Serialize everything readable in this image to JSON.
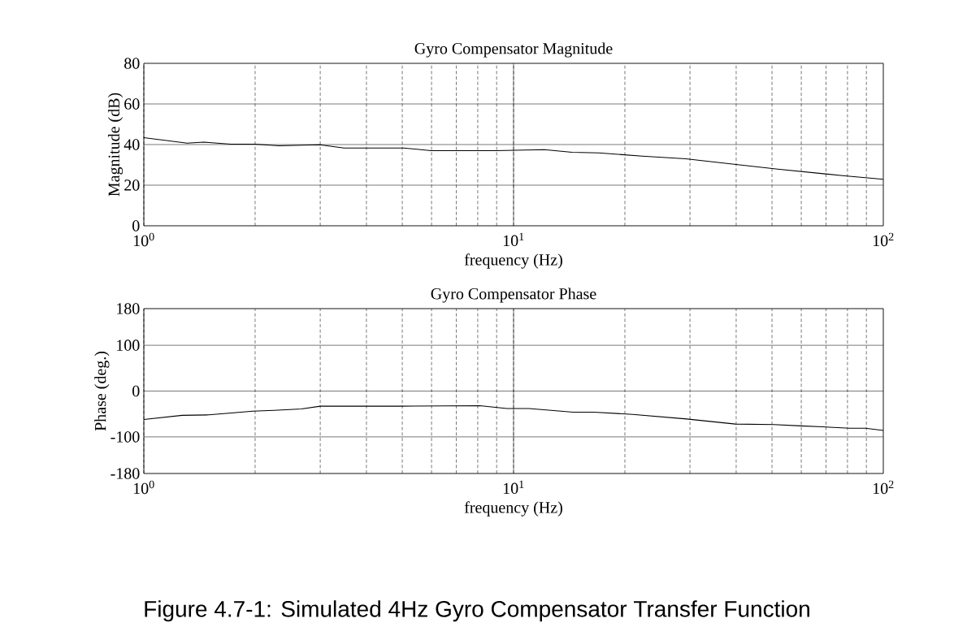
{
  "chart_data": [
    {
      "type": "line",
      "title": "Gyro Compensator Magnitude",
      "xlabel": "frequency (Hz)",
      "ylabel": "Magnitude (dB)",
      "log": "x",
      "grid": true,
      "xlim": [
        1,
        100
      ],
      "xticks": [
        {
          "value": 1,
          "label": "10$^{0}$"
        },
        {
          "value": 10,
          "label": "10$^{1}$"
        },
        {
          "value": 100,
          "label": "10$^{2}$"
        }
      ],
      "ylim": [
        0,
        80
      ],
      "yticks": [
        0,
        20,
        40,
        60,
        80
      ],
      "x": [
        1,
        1.31,
        1.45,
        1.72,
        2.0,
        2.32,
        2.99,
        3.48,
        5.05,
        5.98,
        8.96,
        12.1,
        14.4,
        17.0,
        22.3,
        29.2,
        38.2,
        51.8,
        77.6,
        100
      ],
      "series": [
        {
          "color": "#000000",
          "values": [
            43.4,
            40.7,
            41.2,
            40.2,
            40.2,
            39.4,
            39.9,
            38.3,
            38.3,
            37,
            37,
            37.5,
            36.2,
            35.9,
            34.3,
            33,
            30.6,
            27.9,
            24.7,
            22.9
          ]
        }
      ]
    },
    {
      "type": "line",
      "title": "Gyro Compensator Phase",
      "xlabel": "frequency (Hz)",
      "ylabel": "Phase (deg.)",
      "log": "x",
      "grid": true,
      "xlim": [
        1,
        100
      ],
      "xticks": [
        {
          "value": 1,
          "label": "10$^{0}$"
        },
        {
          "value": 10,
          "label": "10$^{1}$"
        },
        {
          "value": 100,
          "label": "10$^{2}$"
        }
      ],
      "ylim": [
        -180,
        180
      ],
      "yticks": [
        -180,
        -100,
        0,
        100,
        180
      ],
      "x": [
        1,
        1.27,
        1.5,
        1.97,
        2.25,
        2.67,
        3.0,
        4.9,
        8.1,
        9.6,
        11.0,
        14.5,
        16.5,
        21.0,
        29.4,
        39.8,
        50.5,
        59.8,
        68.4,
        81.1,
        89.5,
        100
      ],
      "series": [
        {
          "color": "#000000",
          "values": [
            -62,
            -53,
            -52,
            -44,
            -42,
            -39,
            -33,
            -33,
            -32,
            -38,
            -38,
            -46,
            -46,
            -51,
            -61,
            -72,
            -73,
            -76,
            -78,
            -81,
            -81,
            -86
          ]
        }
      ],
      "annotations": [
        "Figure 4.7-1: Simulated 4Hz Gyro Compensator Transfer Function"
      ]
    }
  ]
}
